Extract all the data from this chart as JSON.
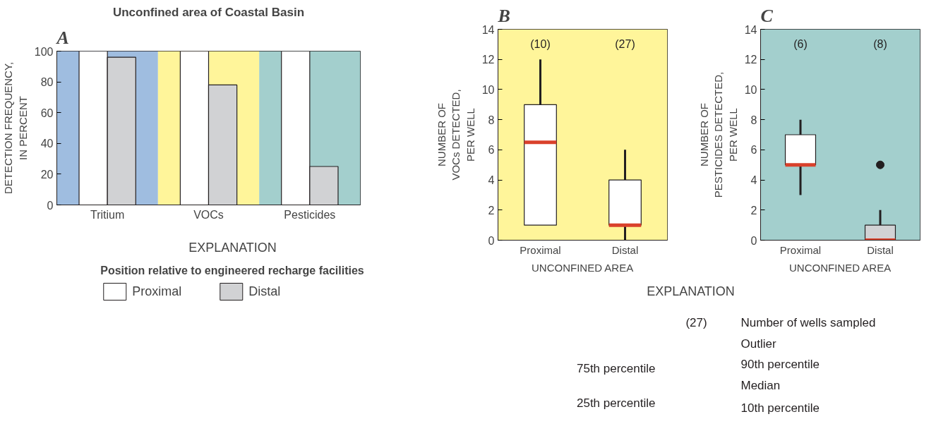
{
  "chart_data": [
    {
      "type": "bar",
      "title": "Unconfined area of Coastal Basin",
      "ylabel": "DETECTION FREQUENCY,\nIN PERCENT",
      "categories": [
        "Tritium",
        "VOCs",
        "Pesticides"
      ],
      "series": [
        {
          "name": "Proximal",
          "color": "#ffffff",
          "values": [
            100,
            100,
            100
          ]
        },
        {
          "name": "Distal",
          "color": "#d1d2d4",
          "values": [
            96,
            78,
            25
          ]
        }
      ],
      "bands": [
        {
          "axis": "x",
          "from": "Tritium",
          "to": "Tritium",
          "color": "#9fbde0"
        },
        {
          "axis": "x",
          "from": "VOCs",
          "to": "VOCs",
          "color": "#fff59a"
        },
        {
          "axis": "x",
          "from": "Pesticides",
          "to": "Pesticides",
          "color": "#a3cfcd"
        }
      ],
      "ylim": [
        0,
        100
      ],
      "yticks": [
        0,
        20,
        40,
        60,
        80,
        100
      ],
      "grid": false,
      "legend": "bottom",
      "legend_title": "Position relative to engineered recharge facilities",
      "annotations": [
        "A",
        "EXPLANATION"
      ]
    },
    {
      "type": "box",
      "xlabel": "UNCONFINED AREA",
      "ylabel": "NUMBER OF\nVOCs DETECTED,\nPER WELL",
      "categories": [
        "Proximal",
        "Distal"
      ],
      "boxes": [
        {
          "low": 1,
          "q1": 1,
          "median": 6.5,
          "q3": 9,
          "high": 12
        },
        {
          "low": 0,
          "q1": 1,
          "median": 1,
          "q3": 4,
          "high": 6
        }
      ],
      "colors": [
        "#ffffff",
        "#ffffff"
      ],
      "bands": [
        {
          "axis": "y",
          "from": 0,
          "to": 14,
          "color": "#fff59a"
        }
      ],
      "ylim": [
        0,
        14
      ],
      "yticks": [
        0,
        2,
        4,
        6,
        8,
        10,
        12,
        14
      ],
      "grid": false,
      "annotations": [
        "B",
        "(10)",
        "(27)"
      ]
    },
    {
      "type": "box",
      "xlabel": "UNCONFINED AREA",
      "ylabel": "NUMBER OF\nPESTICIDES DETECTED,\nPER WELL",
      "categories": [
        "Proximal",
        "Distal"
      ],
      "boxes": [
        {
          "low": 3,
          "q1": 5,
          "median": 5,
          "q3": 7,
          "high": 8
        },
        {
          "low": 0,
          "q1": 0,
          "median": 0,
          "q3": 1,
          "high": 2,
          "outliers": [
            5
          ]
        }
      ],
      "colors": [
        "#ffffff",
        "#d1d2d4"
      ],
      "bands": [
        {
          "axis": "y",
          "from": 0,
          "to": 14,
          "color": "#a3cfcd"
        }
      ],
      "ylim": [
        0,
        14
      ],
      "yticks": [
        0,
        2,
        4,
        6,
        8,
        10,
        12,
        14
      ],
      "grid": false,
      "annotations": [
        "C",
        "(6)",
        "(8)"
      ]
    },
    {
      "type": "other",
      "title": "EXPLANATION",
      "annotations": [
        "(27)",
        "Number of wells sampled",
        "Outlier",
        "75th percentile",
        "90th percentile",
        "Median",
        "25th percentile",
        "10th percentile"
      ]
    }
  ]
}
